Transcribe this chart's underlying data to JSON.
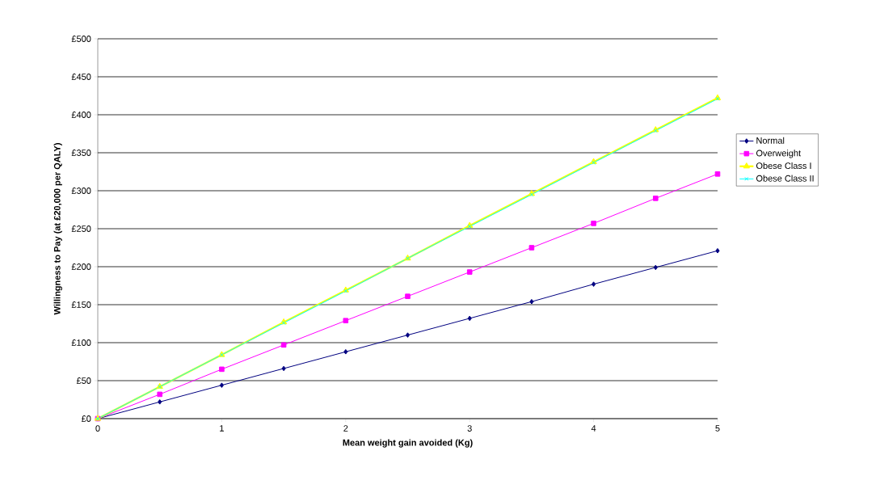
{
  "chart_data": {
    "type": "line",
    "xlabel": "Mean weight gain avoided (Kg)",
    "ylabel": "Willingness to Pay (at £20,000 per QALY)",
    "x": [
      0,
      0.5,
      1,
      1.5,
      2,
      2.5,
      3,
      3.5,
      4,
      4.5,
      5
    ],
    "series": [
      {
        "name": "Normal",
        "color": "#000080",
        "marker": "diamond",
        "values": [
          0,
          22,
          44,
          66,
          88,
          110,
          132,
          154,
          177,
          199,
          221
        ]
      },
      {
        "name": "Overweight",
        "color": "#ff00ff",
        "marker": "square",
        "values": [
          0,
          32,
          65,
          97,
          129,
          161,
          193,
          225,
          257,
          290,
          322
        ]
      },
      {
        "name": "Obese Class I",
        "color": "#ffff00",
        "marker": "triangle",
        "values": [
          0,
          42,
          84,
          127,
          169,
          211,
          254,
          296,
          338,
          380,
          422
        ]
      },
      {
        "name": "Obese Class II",
        "color": "#00ffff",
        "marker": "cross",
        "values": [
          0,
          42,
          84,
          126,
          168,
          211,
          253,
          295,
          337,
          379,
          421
        ]
      }
    ],
    "xlim": [
      0,
      5
    ],
    "xticks": [
      0,
      1,
      2,
      3,
      4,
      5
    ],
    "ylim": [
      0,
      500
    ],
    "yticks": [
      {
        "value": 0,
        "label": "£0"
      },
      {
        "value": 50,
        "label": "£50"
      },
      {
        "value": 100,
        "label": "£100"
      },
      {
        "value": 150,
        "label": "£150"
      },
      {
        "value": 200,
        "label": "£200"
      },
      {
        "value": 250,
        "label": "£250"
      },
      {
        "value": 300,
        "label": "£300"
      },
      {
        "value": 350,
        "label": "£350"
      },
      {
        "value": 400,
        "label": "£400"
      },
      {
        "value": 450,
        "label": "£450"
      },
      {
        "value": 500,
        "label": "£500"
      }
    ],
    "grid": "y",
    "legend": "right",
    "line_style": "solid"
  }
}
